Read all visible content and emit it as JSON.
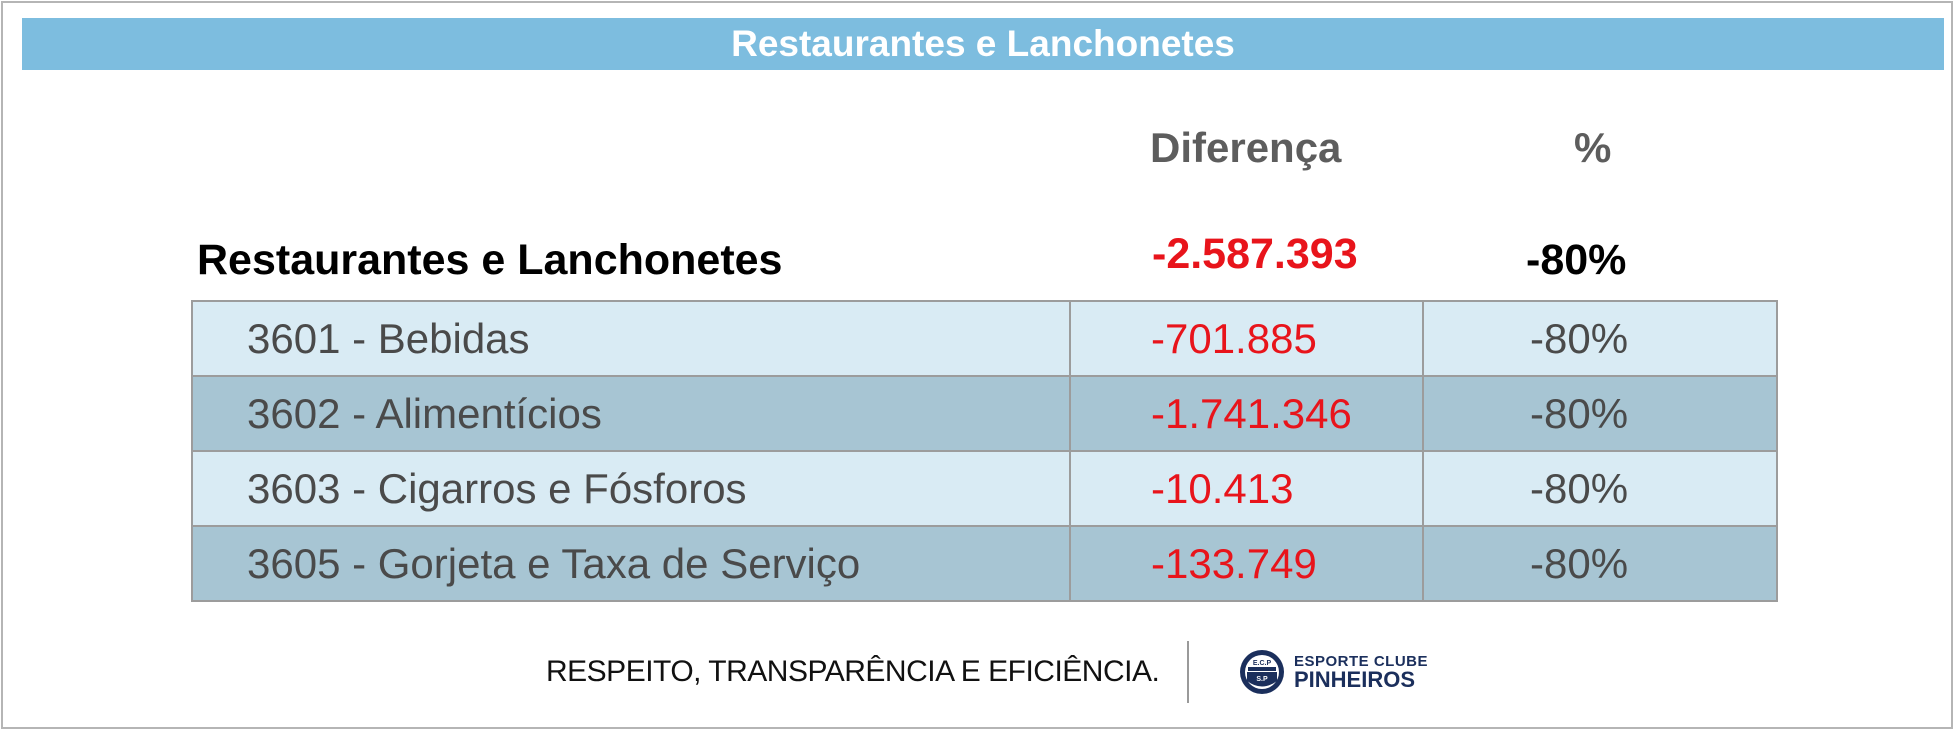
{
  "banner": {
    "title": "Restaurantes e Lanchonetes"
  },
  "columns": {
    "difference": "Diferença",
    "percent": "%"
  },
  "total": {
    "label": "Restaurantes e Lanchonetes",
    "difference": "-2.587.393",
    "percent": "-80%"
  },
  "rows": [
    {
      "name": "3601 - Bebidas",
      "difference": "-701.885",
      "percent": "-80%"
    },
    {
      "name": "3602 - Alimentícios",
      "difference": "-1.741.346",
      "percent": "-80%"
    },
    {
      "name": "3603 - Cigarros e Fósforos",
      "difference": "-10.413",
      "percent": "-80%"
    },
    {
      "name": "3605 - Gorjeta e Taxa de Serviço",
      "difference": "-133.749",
      "percent": "-80%"
    }
  ],
  "footer": {
    "slogan": "RESPEITO, TRANSPARÊNCIA E EFICIÊNCIA.",
    "logo_line1": "ESPORTE CLUBE",
    "logo_line2": "PINHEIROS",
    "logo_badge_top": "E.C.P",
    "logo_badge_bottom": "S.P"
  },
  "colors": {
    "banner": "#7dbddf",
    "negative": "#e8141b",
    "row_light": "#d9ebf4",
    "row_dark": "#a7c5d3",
    "logo_navy": "#1b2f5c"
  }
}
